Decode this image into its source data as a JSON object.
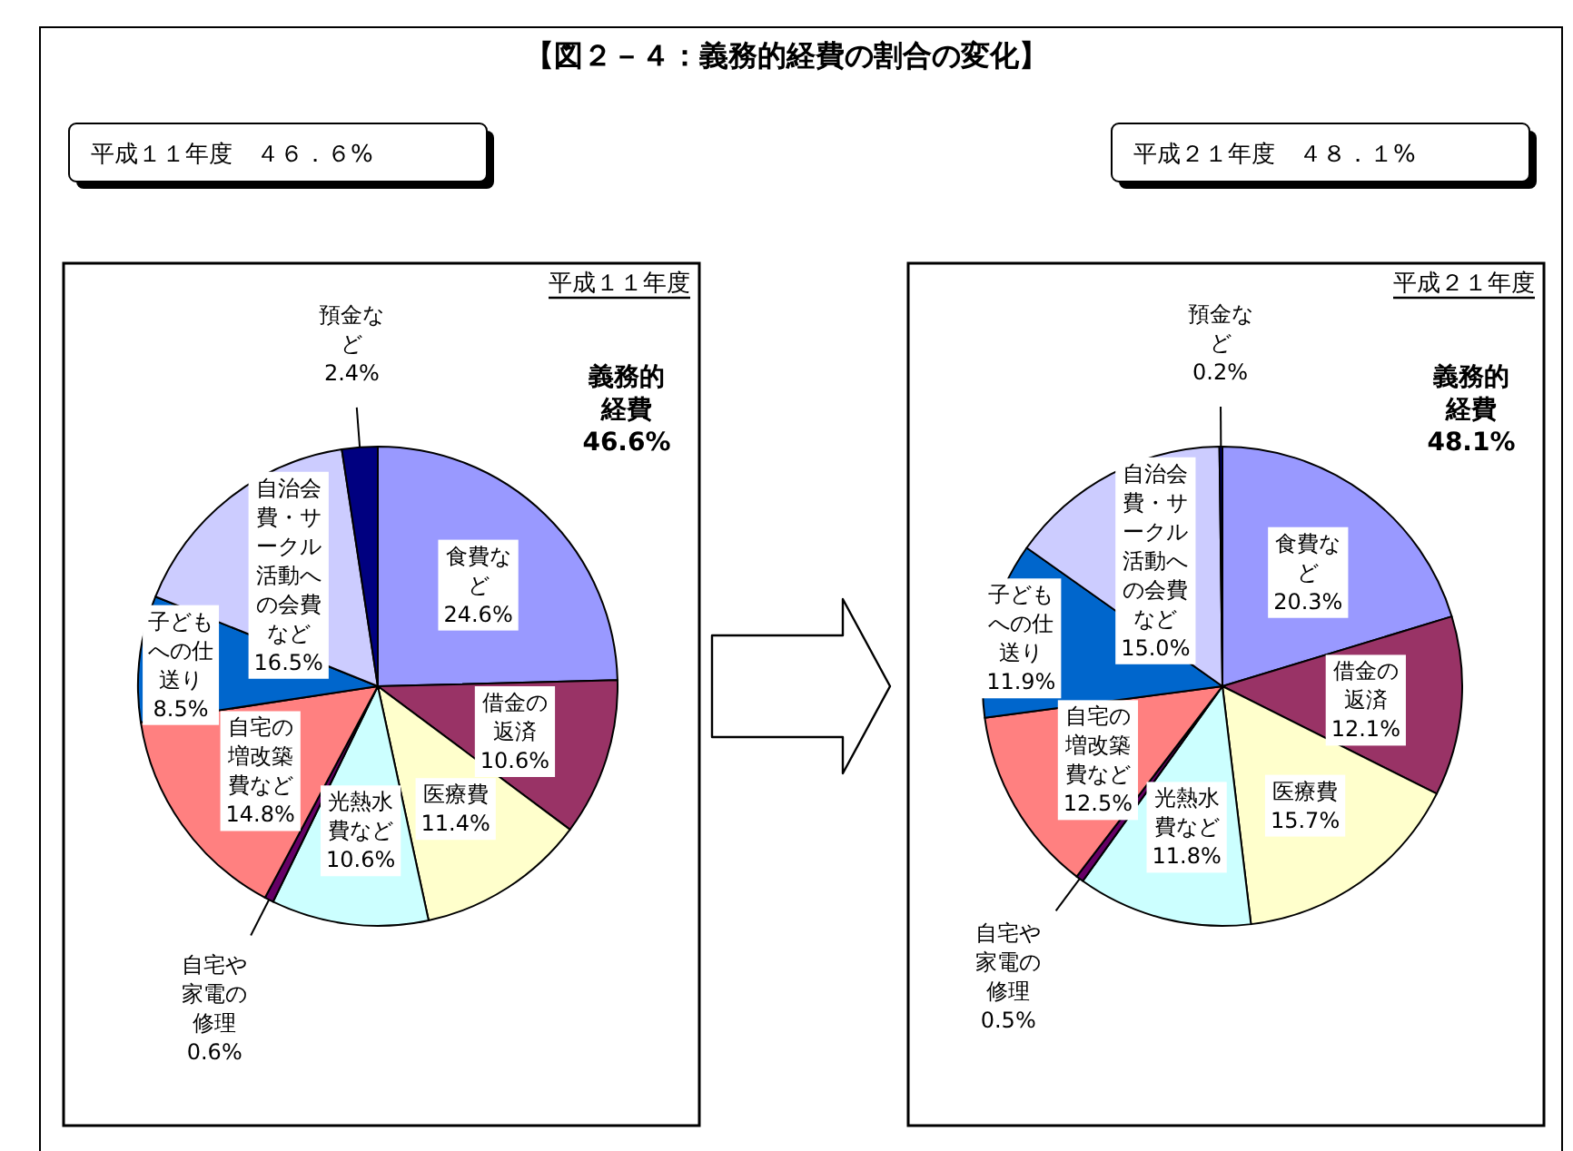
{
  "chart_data": [
    {
      "type": "pie",
      "title": "【図２－４：義務的経費の割合の変化】",
      "subtitle": "平成１１年度",
      "annotations": [
        "平成１１年度　４６．６%",
        "義務的経費 46.6%"
      ],
      "categories": [
        "食費など",
        "借金の返済",
        "医療費",
        "光熱水費など",
        "自宅や家電の修理",
        "自宅の増改築費など",
        "子どもへの仕送り",
        "自治会費・サークル活動への会費など",
        "預金など"
      ],
      "values": [
        24.6,
        10.6,
        11.4,
        10.6,
        0.6,
        14.8,
        8.5,
        16.5,
        2.4
      ],
      "value_labels": [
        "24.6%",
        "10.6%",
        "11.4%",
        "10.6%",
        "0.6%",
        "14.8%",
        "8.5%",
        "16.5%",
        "2.4%"
      ],
      "colors": [
        "#9999ff",
        "#993366",
        "#ffffcc",
        "#ccffff",
        "#660066",
        "#ff8080",
        "#0066cc",
        "#ccccff",
        "#000080"
      ]
    },
    {
      "type": "pie",
      "subtitle": "平成２１年度",
      "annotations": [
        "平成２１年度　４８．１%",
        "義務的経費 48.1%"
      ],
      "categories": [
        "食費など",
        "借金の返済",
        "医療費",
        "光熱水費など",
        "自宅や家電の修理",
        "自宅の増改築費など",
        "子どもへの仕送り",
        "自治会費・サークル活動への会費など",
        "預金など"
      ],
      "values": [
        20.3,
        12.1,
        15.7,
        11.8,
        0.5,
        12.5,
        11.9,
        15.0,
        0.2
      ],
      "value_labels": [
        "20.3%",
        "12.1%",
        "15.7%",
        "11.8%",
        "0.5%",
        "12.5%",
        "11.9%",
        "15.0%",
        "0.2%"
      ],
      "colors": [
        "#9999ff",
        "#993366",
        "#ffffcc",
        "#ccffff",
        "#660066",
        "#ff8080",
        "#0066cc",
        "#ccccff",
        "#000080"
      ]
    }
  ]
}
